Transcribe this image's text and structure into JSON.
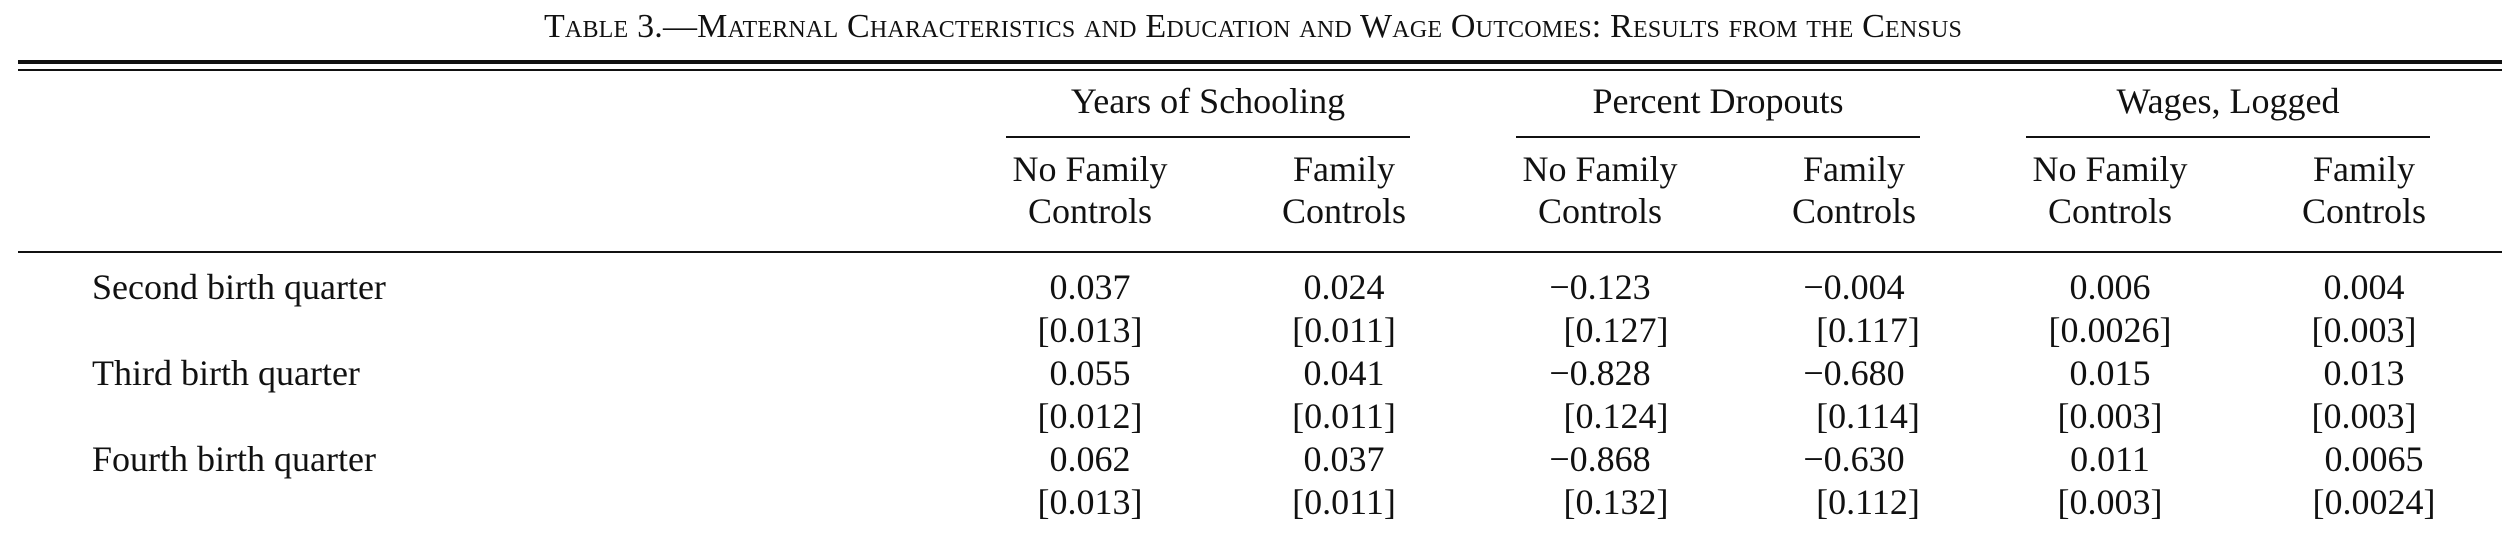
{
  "table": {
    "caption": "Table 3.—Maternal Characteristics and Education and Wage Outcomes: Results from the Census",
    "groups": [
      {
        "label": "Years of Schooling"
      },
      {
        "label": "Percent Dropouts"
      },
      {
        "label": "Wages, Logged"
      }
    ],
    "subcolumns": [
      {
        "line1": "No Family",
        "line2": "Controls"
      },
      {
        "line1": "Family",
        "line2": "Controls"
      },
      {
        "line1": "No Family",
        "line2": "Controls"
      },
      {
        "line1": "Family",
        "line2": "Controls"
      },
      {
        "line1": "No Family",
        "line2": "Controls"
      },
      {
        "line1": "Family",
        "line2": "Controls"
      }
    ],
    "rows": [
      {
        "label": "Second birth quarter",
        "coef": [
          "0.037",
          "0.024",
          "−0.123",
          "−0.004",
          "0.006",
          "0.004"
        ],
        "se": [
          "[0.013]",
          "[0.011]",
          "[0.127]",
          "[0.117]",
          "[0.0026]",
          "[0.003]"
        ]
      },
      {
        "label": "Third birth quarter",
        "coef": [
          "0.055",
          "0.041",
          "−0.828",
          "−0.680",
          "0.015",
          "0.013"
        ],
        "se": [
          "[0.012]",
          "[0.011]",
          "[0.124]",
          "[0.114]",
          "[0.003]",
          "[0.003]"
        ]
      },
      {
        "label": "Fourth birth quarter",
        "coef": [
          "0.062",
          "0.037",
          "−0.868",
          "−0.630",
          "0.011",
          "0.0065"
        ],
        "se": [
          "[0.013]",
          "[0.011]",
          "[0.132]",
          "[0.112]",
          "[0.003]",
          "[0.0024]"
        ]
      }
    ]
  }
}
